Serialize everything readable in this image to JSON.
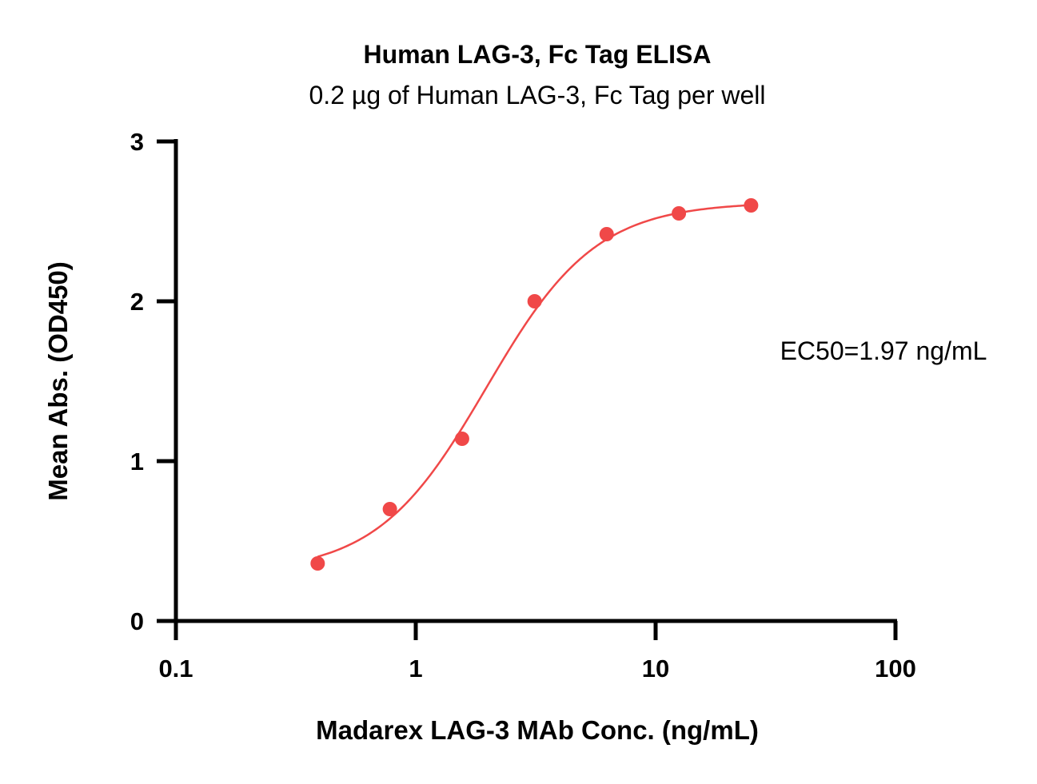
{
  "chart_data": {
    "type": "scatter",
    "title": "Human LAG-3, Fc Tag ELISA",
    "subtitle": "0.2 µg of Human LAG-3, Fc Tag per well",
    "xlabel": "Madarex LAG-3 MAb Conc. (ng/mL)",
    "ylabel": "Mean Abs. (OD450)",
    "xscale": "log",
    "xlim": [
      0.1,
      100
    ],
    "ylim": [
      0,
      3
    ],
    "xticks": [
      0.1,
      1,
      10,
      100
    ],
    "xtick_labels": [
      "0.1",
      "1",
      "10",
      "100"
    ],
    "yticks": [
      0,
      1,
      2,
      3
    ],
    "ytick_labels": [
      "0",
      "1",
      "2",
      "3"
    ],
    "grid": false,
    "series": [
      {
        "color": "#f04848",
        "x": [
          0.39,
          0.78,
          1.56,
          3.13,
          6.25,
          12.5,
          25
        ],
        "y": [
          0.36,
          0.7,
          1.14,
          2.0,
          2.42,
          2.55,
          2.6
        ],
        "fit": "4PL",
        "fit_params": {
          "bottom": 0.3,
          "top": 2.62,
          "ec50": 1.97,
          "hill": 1.9
        }
      }
    ],
    "annotation": "EC50=1.97 ng/mL"
  }
}
